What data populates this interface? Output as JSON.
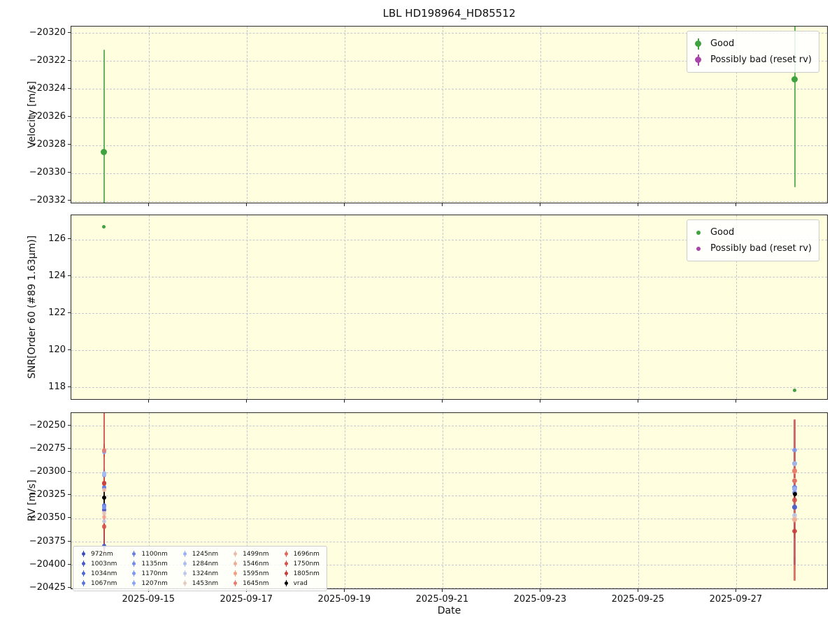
{
  "title": "LBL HD198964_HD85512",
  "xlabel": "Date",
  "colors": {
    "figure_bg": "#ffffff",
    "plot_bg": "#ffffe0",
    "grid": "#c7c7d1",
    "spine": "#2b2b2b",
    "good": "#3fa23f",
    "possibly_bad": "#a746a7",
    "vrad": "#000000"
  },
  "legend_flags": {
    "items": [
      {
        "label": "Good",
        "color": "#3fa23f"
      },
      {
        "label": "Possibly bad (reset rv)",
        "color": "#a746a7"
      }
    ]
  },
  "rv_legend": {
    "items": [
      {
        "label": "972nm",
        "color": "#3b4cc0"
      },
      {
        "label": "1003nm",
        "color": "#4659c9"
      },
      {
        "label": "1034nm",
        "color": "#5066d2"
      },
      {
        "label": "1067nm",
        "color": "#5b73da"
      },
      {
        "label": "1100nm",
        "color": "#6580e2"
      },
      {
        "label": "1135nm",
        "color": "#708ce9"
      },
      {
        "label": "1170nm",
        "color": "#7b98f0"
      },
      {
        "label": "1207nm",
        "color": "#89a4f4"
      },
      {
        "label": "1245nm",
        "color": "#9ab1f1"
      },
      {
        "label": "1284nm",
        "color": "#abbdec"
      },
      {
        "label": "1324nm",
        "color": "#bec9e6"
      },
      {
        "label": "1453nm",
        "color": "#e5cabf"
      },
      {
        "label": "1499nm",
        "color": "#eabcab"
      },
      {
        "label": "1546nm",
        "color": "#efad95"
      },
      {
        "label": "1595nm",
        "color": "#f49d7f"
      },
      {
        "label": "1645nm",
        "color": "#e87b6c"
      },
      {
        "label": "1696nm",
        "color": "#df685c"
      },
      {
        "label": "1750nm",
        "color": "#d4544b"
      },
      {
        "label": "1805nm",
        "color": "#c53e3c"
      },
      {
        "label": "vrad",
        "color": "#000000"
      }
    ]
  },
  "axes": {
    "x_unit": "day of 2025-09",
    "xlim": [
      13.41,
      28.88
    ],
    "xticks": [
      {
        "v": 15,
        "label": "2025-09-15"
      },
      {
        "v": 17,
        "label": "2025-09-17"
      },
      {
        "v": 19,
        "label": "2025-09-19"
      },
      {
        "v": 21,
        "label": "2025-09-21"
      },
      {
        "v": 23,
        "label": "2025-09-23"
      },
      {
        "v": 25,
        "label": "2025-09-25"
      },
      {
        "v": 27,
        "label": "2025-09-27"
      }
    ],
    "observation_dates": [
      "2025-09-14",
      "2025-09-28"
    ]
  },
  "chart_data": [
    {
      "type": "scatter",
      "ylabel": "Velocity [m/s]",
      "ylim": [
        -20332.2,
        -20319.55
      ],
      "marker_size": 9,
      "yticks": [
        {
          "v": -20320,
          "label": "−20320"
        },
        {
          "v": -20322,
          "label": "−20322"
        },
        {
          "v": -20324,
          "label": "−20324"
        },
        {
          "v": -20326,
          "label": "−20326"
        },
        {
          "v": -20328,
          "label": "−20328"
        },
        {
          "v": -20330,
          "label": "−20330"
        },
        {
          "v": -20332,
          "label": "−20332"
        }
      ],
      "series": [
        {
          "name": "Good",
          "color": "#3fa23f",
          "points": [
            [
              14.08,
              -20328.5,
              -20336.5,
              -20321.2
            ],
            [
              28.19,
              -20323.3,
              -20331.0,
              -20314.5
            ]
          ]
        },
        {
          "name": "Possibly bad (reset rv)",
          "color": "#a746a7",
          "points": []
        }
      ]
    },
    {
      "type": "scatter",
      "ylabel": "SNR[Order 60 (#89 1.63μm)]",
      "ylim": [
        117.29,
        127.31
      ],
      "marker_size": 5,
      "yticks": [
        {
          "v": 126,
          "label": "126"
        },
        {
          "v": 124,
          "label": "124"
        },
        {
          "v": 122,
          "label": "122"
        },
        {
          "v": 120,
          "label": "120"
        },
        {
          "v": 118,
          "label": "118"
        }
      ],
      "series": [
        {
          "name": "Good",
          "color": "#3fa23f",
          "points": [
            [
              14.08,
              126.67
            ],
            [
              28.19,
              117.85
            ]
          ]
        },
        {
          "name": "Possibly bad (reset rv)",
          "color": "#a746a7",
          "points": []
        }
      ]
    },
    {
      "type": "scatter",
      "ylabel": "RV [m/s]",
      "ylim": [
        -20426.9,
        -20236.2
      ],
      "marker_size": 6.5,
      "yticks": [
        {
          "v": -20250,
          "label": "−20250"
        },
        {
          "v": -20275,
          "label": "−20275"
        },
        {
          "v": -20300,
          "label": "−20300"
        },
        {
          "v": -20325,
          "label": "−20325"
        },
        {
          "v": -20350,
          "label": "−20350"
        },
        {
          "v": -20375,
          "label": "−20375"
        },
        {
          "v": -20400,
          "label": "−20400"
        },
        {
          "v": -20425,
          "label": "−20425"
        }
      ],
      "series": [
        {
          "name": "972nm",
          "color": "#3b4cc0",
          "points": [
            [
              14.08,
              -20340.5,
              -20380.5,
              -20300.5
            ],
            [
              28.19,
              -20338.0,
              -20344.0,
              -20332.0
            ]
          ]
        },
        {
          "name": "1003nm",
          "color": "#4659c9",
          "points": [
            [
              14.08,
              -20379.5,
              -20385.5,
              -20373.5
            ],
            [
              28.19,
              -20317.0,
              -20322.0,
              -20312.0
            ]
          ]
        },
        {
          "name": "1034nm",
          "color": "#5066d2",
          "points": [
            [
              14.08,
              -20336.0,
              -20342.0,
              -20330.0
            ],
            [
              28.19,
              -20337.5,
              -20399.5,
              -20275.5
            ]
          ]
        },
        {
          "name": "1067nm",
          "color": "#5b73da",
          "points": [
            [
              14.08,
              -20317.0,
              -20322.0,
              -20312.0
            ],
            [
              28.19,
              -20290.5,
              -20296.5,
              -20284.5
            ]
          ]
        },
        {
          "name": "1100nm",
          "color": "#6580e2",
          "points": [
            [
              14.08,
              -20316.0,
              -20321.0,
              -20311.0
            ],
            [
              28.19,
              -20316.5,
              -20321.5,
              -20311.5
            ]
          ]
        },
        {
          "name": "1135nm",
          "color": "#708ce9",
          "points": [
            [
              14.08,
              -20303.0,
              -20308.0,
              -20298.0
            ],
            [
              28.19,
              -20322.0,
              -20327.0,
              -20317.0
            ]
          ]
        },
        {
          "name": "1170nm",
          "color": "#7b98f0",
          "points": [
            [
              14.08,
              -20337.5,
              -20342.5,
              -20332.5
            ],
            [
              28.19,
              -20276.0,
              -20284.0,
              -20268.0
            ]
          ]
        },
        {
          "name": "1207nm",
          "color": "#89a4f4",
          "points": [
            [
              14.08,
              -20278.0,
              -20284.0,
              -20272.0
            ],
            [
              28.19,
              -20318.0,
              -20323.0,
              -20313.0
            ]
          ]
        },
        {
          "name": "1245nm",
          "color": "#9ab1f1",
          "points": [
            [
              14.08,
              -20301.5,
              -20306.5,
              -20296.5
            ],
            [
              28.19,
              -20317.5,
              -20391.5,
              -20243.5
            ]
          ]
        },
        {
          "name": "1284nm",
          "color": "#abbdec",
          "points": [
            [
              14.08,
              -20302.0,
              -20307.0,
              -20297.0
            ],
            [
              28.19,
              -20291.0,
              -20297.0,
              -20285.0
            ]
          ]
        },
        {
          "name": "1324nm",
          "color": "#bec9e6",
          "points": [
            [
              14.08,
              -20353.0,
              -20359.0,
              -20347.0
            ],
            [
              28.19,
              -20346.5,
              -20352.5,
              -20340.5
            ]
          ]
        },
        {
          "name": "1453nm",
          "color": "#e5cabf",
          "points": [
            [
              14.08,
              -20344.5,
              -20350.5,
              -20338.5
            ],
            [
              28.19,
              -20350.5,
              -20356.5,
              -20344.5
            ]
          ]
        },
        {
          "name": "1499nm",
          "color": "#eabcab",
          "points": [
            [
              14.08,
              -20319.0,
              -20325.0,
              -20313.0
            ],
            [
              28.19,
              -20309.0,
              -20315.0,
              -20303.0
            ]
          ]
        },
        {
          "name": "1546nm",
          "color": "#efad95",
          "points": [
            [
              14.08,
              -20348.5,
              -20354.5,
              -20342.5
            ],
            [
              28.19,
              -20351.0,
              -20357.0,
              -20345.0
            ]
          ]
        },
        {
          "name": "1595nm",
          "color": "#f49d7f",
          "points": [
            [
              14.08,
              -20312.5,
              -20318.5,
              -20306.5
            ],
            [
              28.19,
              -20299.0,
              -20305.0,
              -20293.0
            ]
          ]
        },
        {
          "name": "1645nm",
          "color": "#e87b6c",
          "points": [
            [
              14.08,
              -20276.5,
              -20283.5,
              -20269.5
            ],
            [
              28.19,
              -20298.5,
              -20305.5,
              -20291.5
            ]
          ]
        },
        {
          "name": "1696nm",
          "color": "#df685c",
          "points": [
            [
              14.08,
              -20311.5,
              -20318.5,
              -20304.5
            ],
            [
              28.19,
              -20309.5,
              -20316.5,
              -20302.5
            ]
          ]
        },
        {
          "name": "1750nm",
          "color": "#d4544b",
          "points": [
            [
              14.08,
              -20358.5,
              -20366.5,
              -20350.5
            ],
            [
              28.19,
              -20330.0,
              -20417.0,
              -20243.0
            ]
          ]
        },
        {
          "name": "1805nm",
          "color": "#c53e3c",
          "points": [
            [
              14.08,
              -20312.0,
              -20387.0,
              -20230.0
            ],
            [
              28.19,
              -20363.5,
              -20371.5,
              -20355.5
            ]
          ]
        },
        {
          "name": "vrad",
          "color": "#000000",
          "points": [
            [
              14.08,
              -20327.5,
              -20334.5,
              -20320.5
            ],
            [
              28.19,
              -20324.0,
              -20330.0,
              -20318.0
            ]
          ]
        }
      ]
    }
  ]
}
